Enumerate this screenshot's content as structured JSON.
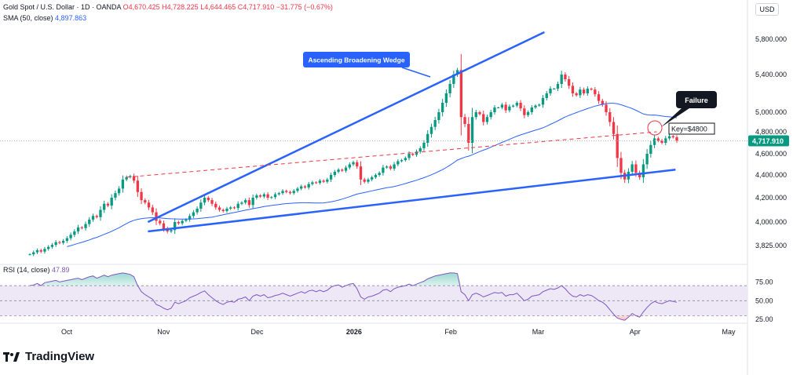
{
  "header": {
    "symbol": "Gold Spot / U.S. Dollar · 1D · OANDA",
    "open": "O4,670.425",
    "high": "H4,728.225",
    "low": "L4,644.465",
    "close": "C4,717.910",
    "change": "−31.775 (−0.67%)",
    "sma_label": "SMA (50, close)",
    "sma_value": "4,897.863",
    "currency": "USD"
  },
  "brand": {
    "name": "TradingView",
    "logo_icon": "tradingview-logo-icon"
  },
  "colors": {
    "up": "#089981",
    "down": "#f23645",
    "sma": "#2962ff",
    "wedge": "#2962ff",
    "key_line": "#f23645",
    "rsi": "#7e57c2",
    "rsi_band": "#ede7f6",
    "label_bg": "#2962ff",
    "callout_bg": "#131722",
    "last_price_bg": "#089981"
  },
  "annotations": {
    "wedge_label": "Ascending Broadening Wedge",
    "failure_label": "Failure",
    "key_label": "Key=$4800"
  },
  "chart_data": [
    {
      "type": "candlestick",
      "title": "Gold Spot / U.S. Dollar · 1D · OANDA",
      "x_tick_labels": [
        "Oct",
        "Nov",
        "Dec",
        "2026",
        "Feb",
        "Mar",
        "Apr",
        "May"
      ],
      "y_tick_labels": [
        "3,825.000",
        "4,000.000",
        "4,200.000",
        "4,400.000",
        "4,600.000",
        "4,800.000",
        "5,000.000",
        "5,400.000",
        "5,800.000"
      ],
      "y_ticks": [
        3825,
        4000,
        4200,
        4400,
        4600,
        4800,
        5000,
        5400,
        5800
      ],
      "last_price": 4717.91,
      "last_price_label": "4,717.910",
      "series": [
        {
          "name": "SMA (50, close)",
          "type": "line",
          "role": "sma"
        },
        {
          "name": "",
          "type": "line",
          "role": "wedge-upper",
          "x": [
            "2025-10-27",
            "2026-03-03"
          ],
          "y": [
            4000,
            5880
          ]
        },
        {
          "name": "",
          "type": "line",
          "role": "wedge-lower",
          "x": [
            "2025-10-27",
            "2026-04-14"
          ],
          "y": [
            3930,
            4450
          ]
        },
        {
          "name": "",
          "type": "line",
          "role": "key-level",
          "x": [
            "2025-10-20",
            "2026-04-08"
          ],
          "y": [
            4380,
            4800
          ]
        }
      ],
      "candles_close": [
        3760,
        3775,
        3790,
        3780,
        3800,
        3815,
        3830,
        3850,
        3845,
        3860,
        3880,
        3905,
        3930,
        3960,
        3955,
        3985,
        4020,
        4050,
        4040,
        4100,
        4150,
        4135,
        4200,
        4240,
        4280,
        4360,
        4380,
        4390,
        4350,
        4250,
        4180,
        4160,
        4120,
        4080,
        4010,
        3990,
        3950,
        3930,
        3940,
        4000,
        3990,
        4010,
        4020,
        4050,
        4080,
        4110,
        4160,
        4200,
        4180,
        4150,
        4120,
        4100,
        4090,
        4110,
        4120,
        4115,
        4150,
        4160,
        4180,
        4140,
        4200,
        4220,
        4210,
        4230,
        4200,
        4205,
        4230,
        4240,
        4260,
        4250,
        4240,
        4260,
        4280,
        4300,
        4290,
        4320,
        4335,
        4330,
        4350,
        4340,
        4360,
        4400,
        4430,
        4450,
        4440,
        4470,
        4500,
        4520,
        4480,
        4360,
        4340,
        4360,
        4380,
        4400,
        4420,
        4470,
        4480,
        4460,
        4500,
        4530,
        4540,
        4560,
        4600,
        4590,
        4620,
        4650,
        4700,
        4780,
        4850,
        4920,
        5000,
        5100,
        5200,
        5300,
        5400,
        5450,
        4950,
        4880,
        4700,
        4950,
        5000,
        4980,
        4900,
        4950,
        5000,
        5050,
        5050,
        5080,
        5020,
        5060,
        5070,
        5100,
        5040,
        4970,
        5000,
        5050,
        5070,
        5080,
        5150,
        5200,
        5250,
        5250,
        5300,
        5400,
        5350,
        5280,
        5200,
        5180,
        5240,
        5200,
        5250,
        5240,
        5190,
        5120,
        5080,
        5000,
        4900,
        4780,
        4560,
        4420,
        4360,
        4430,
        4500,
        4420,
        4380,
        4500,
        4600,
        4680,
        4740,
        4720,
        4700,
        4740,
        4760,
        4750,
        4717.91
      ]
    },
    {
      "type": "line",
      "title": "",
      "legend": "RSI (14, close)",
      "legend_value": "47.89",
      "y_tick_labels": [
        "75.00",
        "50.00",
        "25.00"
      ],
      "y_ticks": [
        75,
        50,
        25
      ],
      "band": [
        30,
        70
      ],
      "series": [
        {
          "name": "RSI (14, close)",
          "values": [
            70,
            71,
            73,
            70,
            74,
            75,
            76,
            77,
            75,
            76,
            77,
            78,
            79,
            80,
            78,
            80,
            82,
            83,
            80,
            82,
            84,
            82,
            84,
            85,
            86,
            87,
            86,
            85,
            82,
            70,
            62,
            58,
            55,
            52,
            45,
            43,
            40,
            38,
            40,
            48,
            46,
            48,
            50,
            54,
            56,
            58,
            61,
            63,
            58,
            54,
            50,
            47,
            45,
            48,
            49,
            48,
            52,
            53,
            55,
            50,
            56,
            58,
            56,
            58,
            54,
            55,
            57,
            58,
            60,
            58,
            56,
            58,
            60,
            62,
            60,
            63,
            64,
            62,
            64,
            62,
            64,
            68,
            70,
            71,
            68,
            70,
            72,
            73,
            66,
            55,
            52,
            55,
            56,
            58,
            60,
            64,
            65,
            62,
            66,
            68,
            69,
            70,
            72,
            70,
            72,
            74,
            76,
            79,
            81,
            83,
            84,
            85,
            86,
            87,
            87,
            86,
            62,
            58,
            50,
            58,
            60,
            58,
            55,
            57,
            59,
            61,
            60,
            61,
            56,
            58,
            58,
            60,
            55,
            50,
            52,
            56,
            57,
            58,
            62,
            64,
            66,
            65,
            67,
            70,
            66,
            60,
            56,
            55,
            58,
            56,
            58,
            57,
            54,
            50,
            48,
            44,
            38,
            32,
            27,
            25,
            24,
            28,
            33,
            30,
            28,
            35,
            41,
            46,
            49,
            47,
            46,
            48,
            50,
            49,
            47.89
          ]
        }
      ]
    }
  ]
}
